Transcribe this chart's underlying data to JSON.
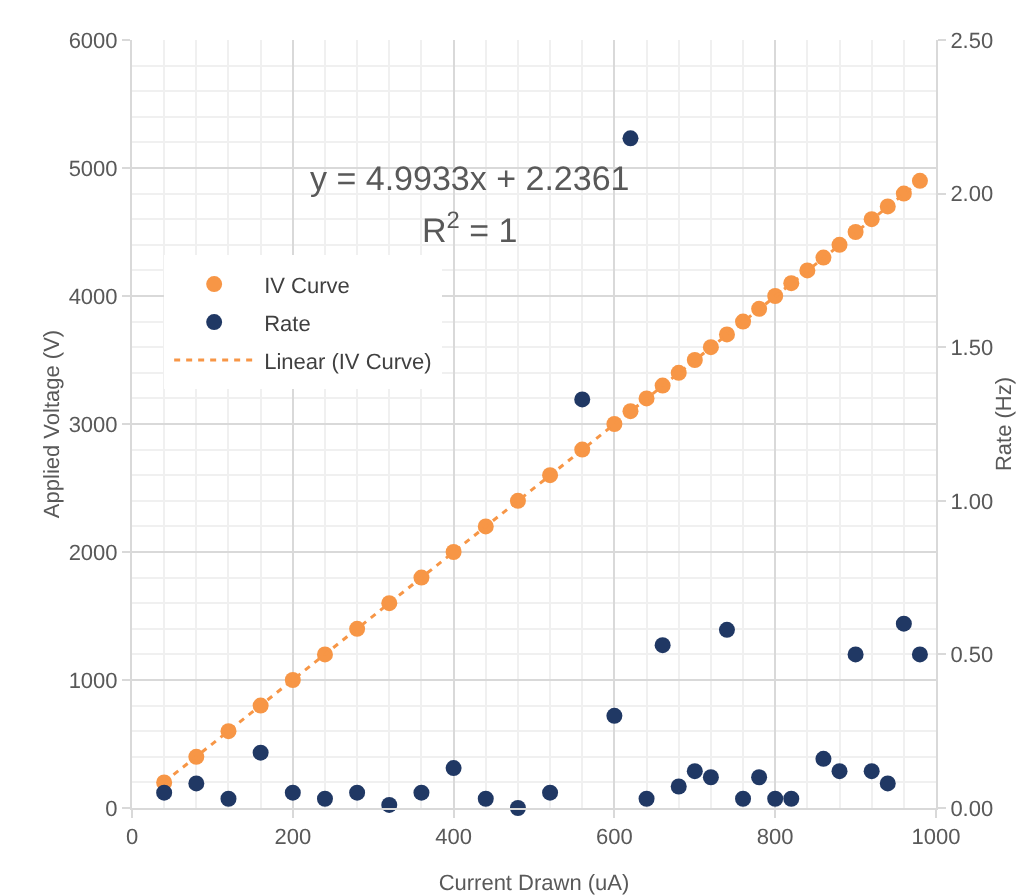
{
  "chart_data": {
    "type": "scatter",
    "xlabel": "Current Drawn (uA)",
    "ylabel": "Applied Voltage (V)",
    "y2label": "Rate (Hz)",
    "annotations": [
      "y = 4.9933x + 2.2361",
      "R$^{2}$ = 1"
    ],
    "series": [
      {
        "name": "IV Curve",
        "color": "#f79646",
        "x": [
          40,
          80,
          120,
          160,
          200,
          240,
          280,
          320,
          360,
          400,
          440,
          480,
          520,
          560,
          600,
          620,
          640,
          660,
          680,
          700,
          720,
          740,
          760,
          780,
          800,
          820,
          840,
          860,
          880,
          900,
          920,
          940,
          960,
          980
        ],
        "values": [
          200,
          400,
          600,
          800,
          1000,
          1200,
          1400,
          1600,
          1800,
          2000,
          2200,
          2400,
          2600,
          2800,
          3000,
          3100,
          3200,
          3300,
          3400,
          3500,
          3600,
          3700,
          3800,
          3900,
          4000,
          4100,
          4200,
          4300,
          4400,
          4500,
          4600,
          4700,
          4800,
          4900
        ]
      },
      {
        "name": "Rate",
        "color": "#203864",
        "axis": "y2",
        "x": [
          40,
          80,
          120,
          160,
          200,
          240,
          280,
          320,
          360,
          400,
          440,
          480,
          520,
          560,
          600,
          620,
          640,
          660,
          680,
          700,
          720,
          740,
          760,
          780,
          800,
          820,
          860,
          880,
          900,
          920,
          940,
          960,
          980
        ],
        "values": [
          0.05,
          0.08,
          0.03,
          0.18,
          0.05,
          0.03,
          0.05,
          0.01,
          0.05,
          0.13,
          0.03,
          0.0,
          0.05,
          1.33,
          0.3,
          2.18,
          0.03,
          0.53,
          0.07,
          0.12,
          0.1,
          0.58,
          0.03,
          0.1,
          0.03,
          0.03,
          0.16,
          0.12,
          0.5,
          0.12,
          0.08,
          0.6,
          0.5
        ]
      },
      {
        "name": "Linear (IV Curve)",
        "type": "line",
        "color": "#f79646",
        "line_style": "dotted",
        "marker": "none",
        "x": [
          40,
          980
        ],
        "values": [
          202,
          4896
        ]
      }
    ],
    "xlim": [
      0,
      1000
    ],
    "xticks": [
      0,
      200,
      400,
      600,
      800,
      1000
    ],
    "ylim": [
      0,
      6000
    ],
    "yticks": [
      0,
      1000,
      2000,
      3000,
      4000,
      5000,
      6000
    ],
    "y2lim": [
      0,
      2.5
    ],
    "y2ticks": [
      {
        "value": 0,
        "label": "0.00"
      },
      {
        "value": 0.5,
        "label": "0.50"
      },
      {
        "value": 1,
        "label": "1.00"
      },
      {
        "value": 1.5,
        "label": "1.50"
      },
      {
        "value": 2,
        "label": "2.00"
      },
      {
        "value": 2.5,
        "label": "2.50"
      }
    ],
    "grid": true,
    "legend": "left",
    "marker": "circle"
  }
}
